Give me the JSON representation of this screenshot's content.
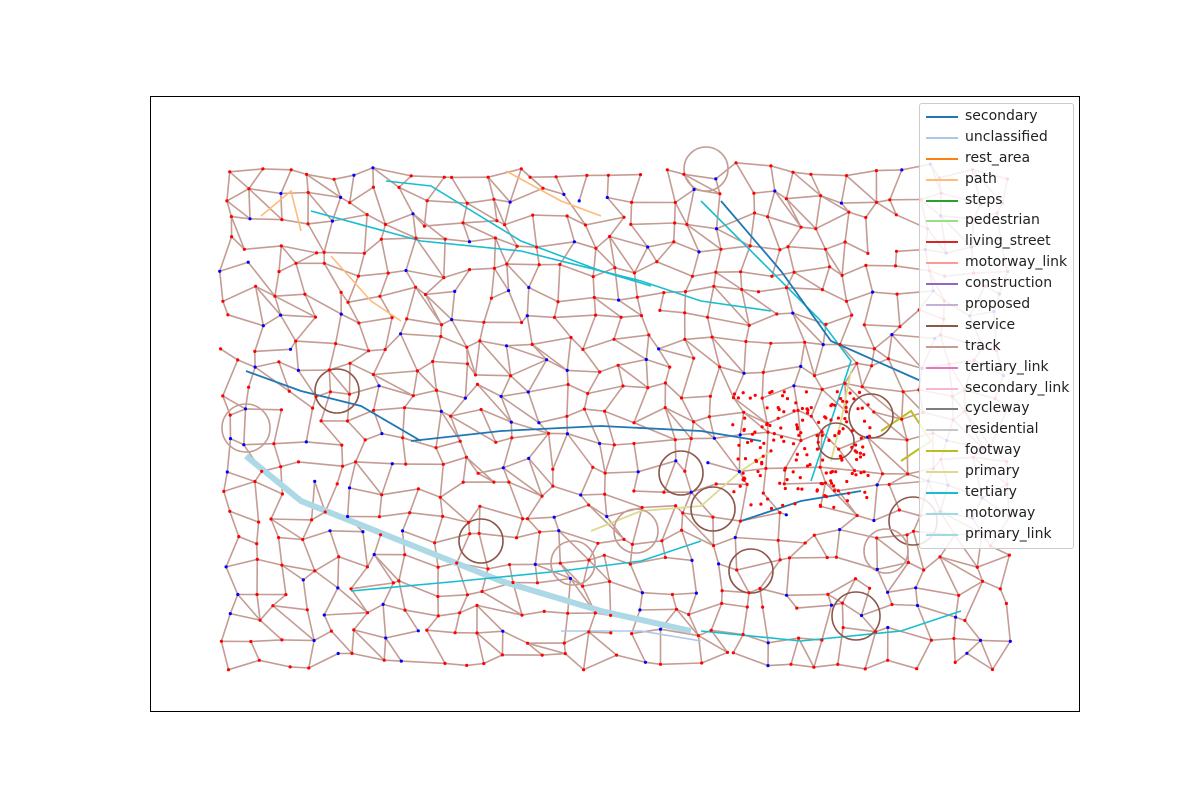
{
  "map": {
    "legend": [
      {
        "label": "secondary",
        "color": "#1f77b4"
      },
      {
        "label": "unclassified",
        "color": "#aec7e8"
      },
      {
        "label": "rest_area",
        "color": "#ff7f0e"
      },
      {
        "label": "path",
        "color": "#ffbb78"
      },
      {
        "label": "steps",
        "color": "#2ca02c"
      },
      {
        "label": "pedestrian",
        "color": "#98df8a"
      },
      {
        "label": "living_street",
        "color": "#d62728"
      },
      {
        "label": "motorway_link",
        "color": "#ff9896"
      },
      {
        "label": "construction",
        "color": "#9467bd"
      },
      {
        "label": "proposed",
        "color": "#c5b0d5"
      },
      {
        "label": "service",
        "color": "#8c564b"
      },
      {
        "label": "track",
        "color": "#c49c94"
      },
      {
        "label": "tertiary_link",
        "color": "#e377c2"
      },
      {
        "label": "secondary_link",
        "color": "#f7b6d2"
      },
      {
        "label": "cycleway",
        "color": "#7f7f7f"
      },
      {
        "label": "residential",
        "color": "#c7c7c7"
      },
      {
        "label": "footway",
        "color": "#bcbd22"
      },
      {
        "label": "primary",
        "color": "#dbdb8d"
      },
      {
        "label": "tertiary",
        "color": "#17becf"
      },
      {
        "label": "motorway",
        "color": "#9edae5"
      },
      {
        "label": "primary_link",
        "color": "#9edae5"
      }
    ],
    "node_colors": {
      "junction": "#ff0000",
      "endpoint": "#0000ff"
    }
  }
}
